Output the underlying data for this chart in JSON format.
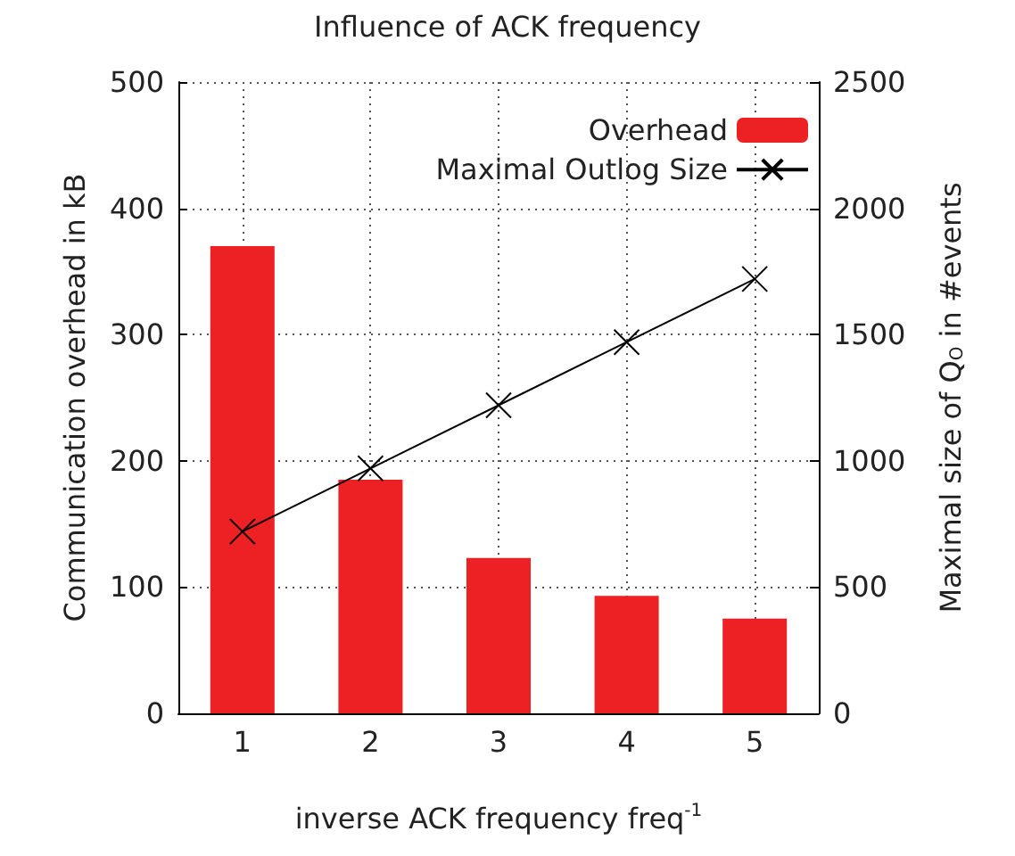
{
  "chart_data": {
    "type": "bar",
    "title": "Influence of ACK frequency",
    "xlabel": "inverse ACK frequency freq$^{-1}$",
    "ylabel": "Communication overhead in kB",
    "y2label": "Maximal size of Q$_{O}$ in #events",
    "x": [
      1,
      2,
      3,
      4,
      5
    ],
    "xlim": [
      0.5,
      5.5
    ],
    "xticks": [
      1,
      2,
      3,
      4,
      5
    ],
    "series": [
      {
        "name": "Overhead",
        "color": "#ed2024",
        "values": [
          370,
          185,
          123,
          93,
          75
        ]
      },
      {
        "name": "Maximal Outlog Size",
        "type": "line",
        "axis": "y2",
        "color": "#000000",
        "marker": "cross",
        "values": [
          720,
          970,
          1220,
          1470,
          1720
        ]
      }
    ],
    "ylim": [
      0,
      500
    ],
    "yticks": [
      0,
      100,
      200,
      300,
      400,
      500
    ],
    "y2lim": [
      0,
      2500
    ],
    "y2ticks": [
      0,
      500,
      1000,
      1500,
      2000,
      2500
    ],
    "grid": true,
    "legend": "top right"
  }
}
